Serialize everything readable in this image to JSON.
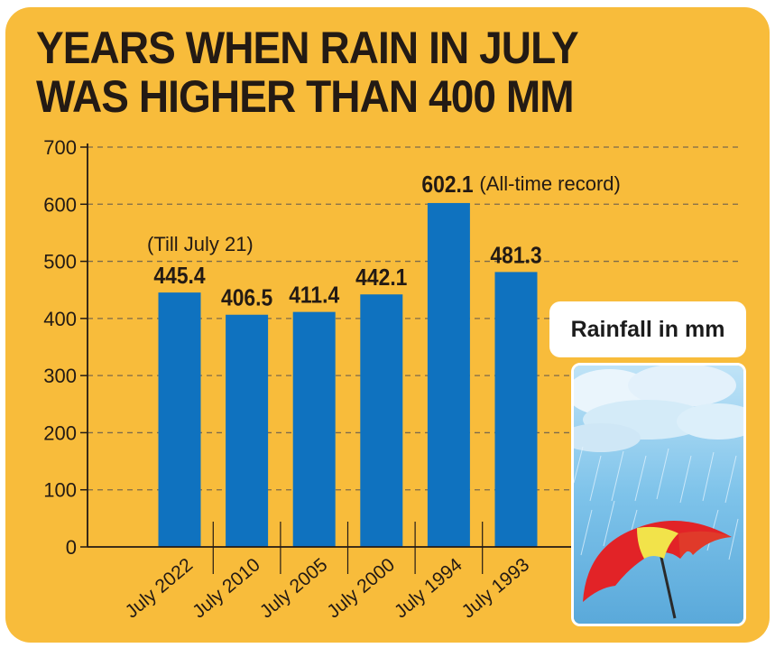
{
  "title_lines": [
    "YEARS WHEN RAIN IN JULY",
    "WAS HIGHER THAN 400 MM"
  ],
  "legend_label": "Rainfall in mm",
  "colors": {
    "background": "#f8bc3b",
    "bar": "#0f72bf",
    "text": "#231a14",
    "gridline": "#7d6a4a"
  },
  "chart_data": {
    "type": "bar",
    "title": "YEARS WHEN RAIN IN JULY WAS HIGHER THAN 400 MM",
    "categories": [
      "July 2022",
      "July 2010",
      "July 2005",
      "July 2000",
      "July 1994",
      "July 1993"
    ],
    "values": [
      445.4,
      406.5,
      411.4,
      442.1,
      602.1,
      481.3
    ],
    "value_labels": [
      "445.4",
      "406.5",
      "411.4",
      "442.1",
      "602.1",
      "481.3"
    ],
    "annotations": [
      {
        "category": "July 2022",
        "text": "(Till July 21)"
      },
      {
        "category": "July 1994",
        "text": "(All-time record)"
      }
    ],
    "yticks": [
      0,
      100,
      200,
      300,
      400,
      500,
      600,
      700
    ],
    "ylim": [
      0,
      700
    ],
    "grid": true,
    "legend": "Rainfall in mm"
  }
}
